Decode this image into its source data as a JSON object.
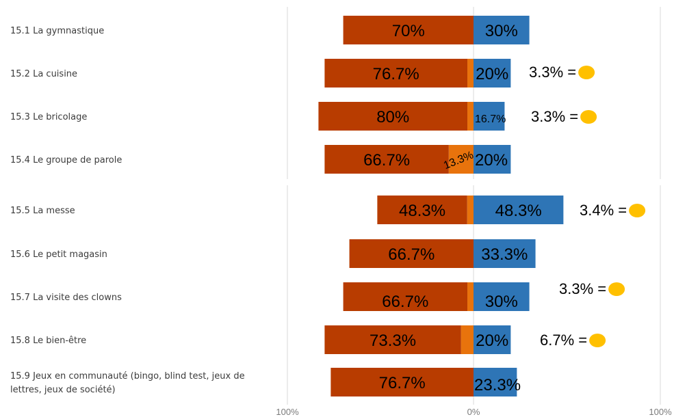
{
  "chart_data": {
    "type": "bar",
    "orientation": "horizontal",
    "stacked": "diverging",
    "categories": [
      "15.1 La gymnastique",
      "15.2 La cuisine",
      "15.3 Le bricolage",
      "15.4 Le groupe de parole",
      "15.5 La messe",
      "15.6 Le petit magasin",
      "15.7 La visite des clowns",
      "15.8 Le bien-être",
      "15.9 Jeux en communauté (bingo, blind test, jeux de lettres, jeux de société)"
    ],
    "series": [
      {
        "color": "#b83c00",
        "values": [
          70,
          76.7,
          80,
          66.7,
          48.3,
          66.7,
          66.7,
          73.3,
          76.7
        ],
        "labels": [
          "70%",
          "76.7%",
          "80%",
          "66.7%",
          "48.3%",
          "66.7%",
          "66.7%",
          "73.3%",
          "76.7%"
        ]
      },
      {
        "color": "#e8730c",
        "values": [
          0,
          3.3,
          3.3,
          13.3,
          3.4,
          0,
          3.3,
          6.7,
          0
        ],
        "labels": [
          "",
          "",
          "",
          "13.3%",
          "",
          "",
          "",
          "",
          ""
        ]
      },
      {
        "color": "#2e75b6",
        "values": [
          30,
          20,
          16.7,
          20,
          48.3,
          33.3,
          30,
          20,
          23.3
        ],
        "labels": [
          "30%",
          "20%",
          "16.7%",
          "20%",
          "48.3%",
          "33.3%",
          "30%",
          "20%",
          "23.3%"
        ]
      }
    ],
    "annotations": [
      "",
      "3.3% =",
      "3.3% =",
      "",
      "3.4% =",
      "",
      "3.3% =",
      "6.7% =",
      ""
    ],
    "annotation_marker_color": "#ffc000",
    "x_ticks": [
      "100%",
      "0%",
      "100%"
    ],
    "xlim": [
      -100,
      100
    ],
    "grid": "vertical lines at -100, 0, 100"
  }
}
